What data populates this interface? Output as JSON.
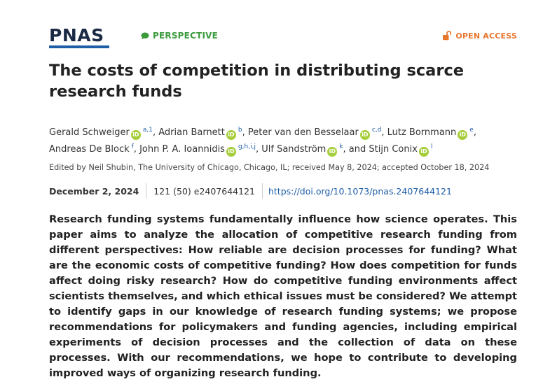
{
  "journal": {
    "logo_text": "PNAS",
    "article_type": "PERSPECTIVE",
    "access": "OPEN ACCESS"
  },
  "article": {
    "title": "The costs of competition in distributing scarce research funds",
    "authors": [
      {
        "name": "Gerald Schweiger",
        "affiliations": "a,1"
      },
      {
        "name": "Adrian Barnett",
        "affiliations": "b"
      },
      {
        "name": "Peter van den Besselaar",
        "affiliations": "c,d"
      },
      {
        "name": "Lutz Bornmann",
        "affiliations": "e"
      },
      {
        "name": "Andreas De Block",
        "affiliations": "f"
      },
      {
        "name": "John P. A. Ioannidis",
        "affiliations": "g,h,i,j"
      },
      {
        "name": "Ulf Sandström",
        "affiliations": "k"
      },
      {
        "name": "Stijn Conix",
        "affiliations": "l"
      }
    ],
    "orcid_label": "iD",
    "edited_by": "Edited by Neil Shubin, The University of Chicago, Chicago, IL; received May 8, 2024; accepted October 18, 2024",
    "date": "December 2, 2024",
    "citation": "121 (50) e2407644121",
    "doi": "https://doi.org/10.1073/pnas.2407644121",
    "abstract": "Research funding systems fundamentally influence how science operates. This paper aims to analyze the allocation of competitive research funding from different perspectives: How reliable are decision processes for funding? What are the economic costs of competitive funding? How does competition for funds affect doing risky research? How do competitive funding environments affect scientists themselves, and which ethical issues must be considered? We attempt to identify gaps in our knowledge of research funding systems; we propose recommendations for policymakers and funding agencies, including empirical experiments of decision processes and the collection of data on these processes. With our recommendations, we hope to contribute to developing improved ways of organizing research funding."
  },
  "colors": {
    "logo": "#1a2a44",
    "logo_underline": "#1f5fa8",
    "perspective": "#3a9a3c",
    "open_access": "#e8772e",
    "orcid": "#a6ce39",
    "link": "#1f5fa8"
  },
  "icons": {
    "perspective": "speech-bubble-icon",
    "open_access": "open-lock-icon",
    "orcid": "orcid-icon"
  }
}
